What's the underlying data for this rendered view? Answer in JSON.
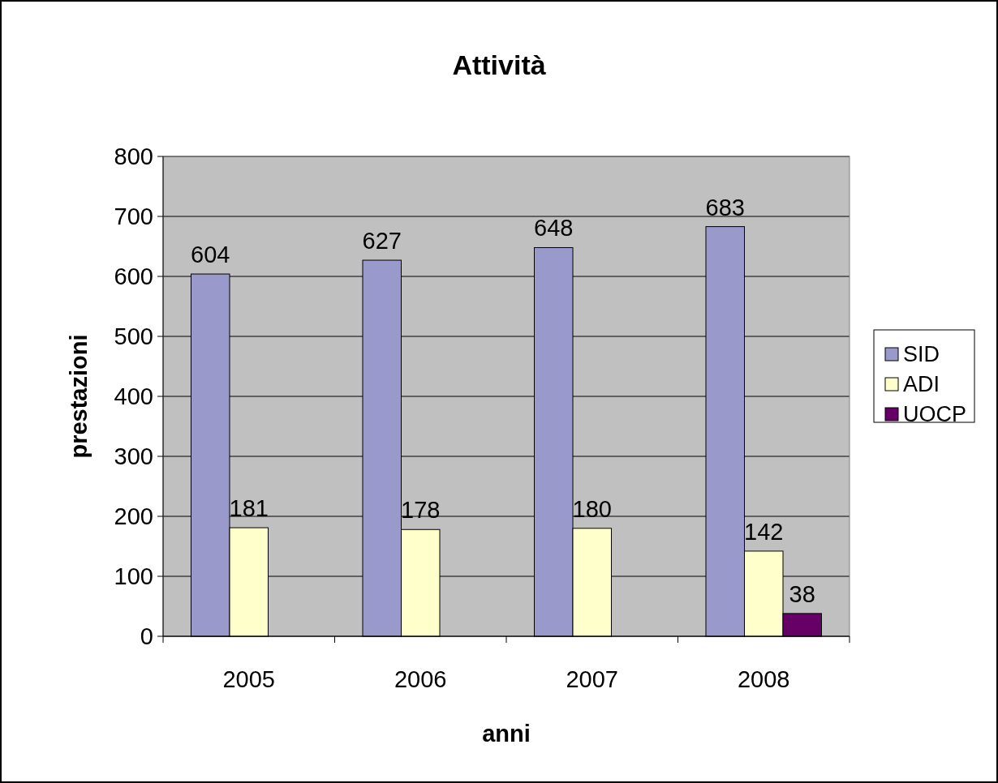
{
  "chart_data": {
    "type": "bar",
    "title": "Attività",
    "xlabel": "anni",
    "ylabel": "prestazioni",
    "categories": [
      "2005",
      "2006",
      "2007",
      "2008"
    ],
    "series": [
      {
        "name": "SID",
        "color": "#9999cc",
        "values": [
          604,
          627,
          648,
          683
        ]
      },
      {
        "name": "ADI",
        "color": "#ffffcc",
        "values": [
          181,
          178,
          180,
          142
        ]
      },
      {
        "name": "UOCP",
        "color": "#660066",
        "values": [
          null,
          null,
          null,
          38
        ]
      }
    ],
    "ylim": [
      0,
      800
    ],
    "yticks": [
      0,
      100,
      200,
      300,
      400,
      500,
      600,
      700,
      800
    ],
    "grid": "y",
    "legend": "right",
    "data_labels": true
  }
}
